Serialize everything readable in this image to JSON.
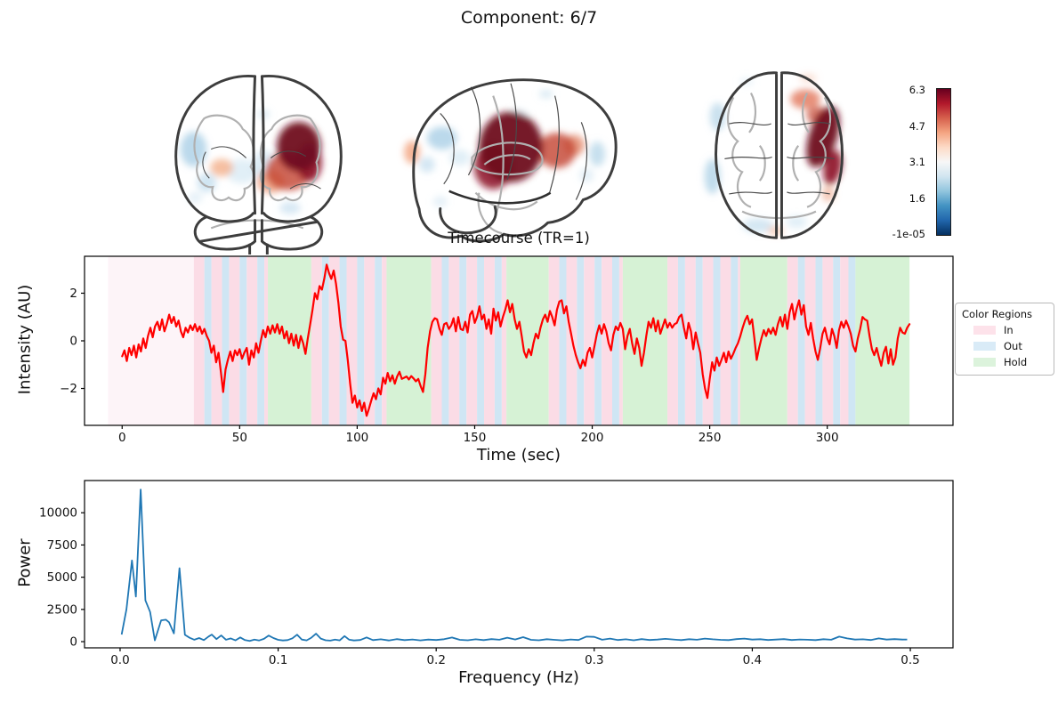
{
  "title": "Component: 6/7",
  "colorbar": {
    "labels": [
      "6.3",
      "4.7",
      "3.1",
      "1.6",
      "-1e-05"
    ],
    "gradient_top_to_bottom": [
      "#67001f",
      "#b2182b",
      "#d6604d",
      "#f4a582",
      "#fddbc7",
      "#f7f7f7",
      "#d1e5f0",
      "#92c5de",
      "#4393c3",
      "#2166ac",
      "#053061"
    ]
  },
  "legend": {
    "title": "Color Regions",
    "items": [
      {
        "label": "In",
        "color": "#fde2ea"
      },
      {
        "label": "Out",
        "color": "#d9ebf7"
      },
      {
        "label": "Hold",
        "color": "#dcf3dc"
      }
    ]
  },
  "brain_views": [
    {
      "name": "coronal"
    },
    {
      "name": "sagittal"
    },
    {
      "name": "axial"
    }
  ],
  "chart_data": [
    {
      "type": "line",
      "title": "Timecourse (TR=1)",
      "xlabel": "Time (sec)",
      "ylabel": "Intensity (AU)",
      "xlim": [
        -16,
        353.5
      ],
      "ylim": [
        -3.55,
        3.55
      ],
      "xticks": [
        0,
        50,
        100,
        150,
        200,
        250,
        300
      ],
      "yticks": [
        -2,
        0,
        2
      ],
      "line_color": "#ff0000",
      "t_start": 0,
      "dt": 1,
      "values": [
        -0.65,
        -0.4,
        -0.85,
        -0.3,
        -0.6,
        -0.2,
        -0.7,
        -0.15,
        -0.45,
        0.1,
        -0.3,
        0.2,
        0.55,
        0.15,
        0.6,
        0.8,
        0.45,
        0.9,
        0.4,
        0.7,
        1.1,
        0.75,
        1.0,
        0.6,
        0.85,
        0.4,
        0.15,
        0.55,
        0.35,
        0.65,
        0.45,
        0.7,
        0.4,
        0.6,
        0.3,
        0.5,
        0.2,
        0.0,
        -0.5,
        -0.2,
        -0.9,
        -0.5,
        -1.3,
        -2.15,
        -1.2,
        -0.8,
        -0.45,
        -0.85,
        -0.4,
        -0.6,
        -0.35,
        -0.75,
        -0.5,
        -0.3,
        -1.0,
        -0.4,
        -0.7,
        -0.1,
        -0.5,
        0.0,
        0.45,
        0.15,
        0.6,
        0.3,
        0.65,
        0.35,
        0.7,
        0.3,
        0.6,
        0.1,
        0.4,
        -0.1,
        0.3,
        -0.2,
        0.25,
        -0.3,
        0.2,
        -0.1,
        -0.55,
        0.1,
        0.7,
        1.3,
        2.0,
        1.75,
        2.3,
        2.15,
        2.6,
        3.2,
        2.85,
        2.6,
        2.95,
        2.4,
        1.6,
        0.6,
        0.05,
        0.0,
        -0.8,
        -1.8,
        -2.6,
        -2.3,
        -2.8,
        -2.5,
        -2.95,
        -2.6,
        -3.15,
        -2.85,
        -2.5,
        -2.2,
        -2.45,
        -2.0,
        -2.25,
        -1.55,
        -1.8,
        -1.35,
        -1.7,
        -1.45,
        -1.8,
        -1.5,
        -1.3,
        -1.6,
        -1.55,
        -1.5,
        -1.62,
        -1.48,
        -1.58,
        -1.7,
        -1.6,
        -1.9,
        -2.15,
        -1.4,
        -0.3,
        0.4,
        0.8,
        0.95,
        0.9,
        0.5,
        0.25,
        0.7,
        0.75,
        0.5,
        0.65,
        0.95,
        0.4,
        1.0,
        0.5,
        0.45,
        0.8,
        0.35,
        1.1,
        1.25,
        0.75,
        1.0,
        1.45,
        0.9,
        1.1,
        0.5,
        0.9,
        0.3,
        1.35,
        0.85,
        1.2,
        0.6,
        1.0,
        1.3,
        1.7,
        1.2,
        1.55,
        0.9,
        0.5,
        0.8,
        0.2,
        -0.45,
        -0.7,
        -0.35,
        -0.6,
        -0.1,
        0.3,
        0.1,
        0.55,
        0.9,
        1.1,
        0.8,
        1.25,
        1.0,
        0.65,
        1.3,
        1.65,
        1.7,
        1.15,
        1.45,
        0.8,
        0.3,
        -0.2,
        -0.6,
        -0.9,
        -1.15,
        -0.8,
        -1.05,
        -0.5,
        -0.3,
        -0.7,
        -0.2,
        0.3,
        0.65,
        0.3,
        0.7,
        0.4,
        -0.1,
        -0.4,
        0.25,
        0.6,
        0.45,
        0.75,
        0.5,
        -0.35,
        0.2,
        0.5,
        -0.1,
        -0.55,
        0.1,
        -0.3,
        -1.05,
        -0.5,
        0.2,
        0.8,
        0.55,
        0.95,
        0.4,
        0.85,
        0.3,
        0.6,
        0.9,
        0.55,
        0.75,
        0.55,
        0.7,
        0.75,
        1.0,
        1.1,
        0.55,
        0.1,
        0.75,
        0.4,
        -0.35,
        0.35,
        -0.1,
        -0.5,
        -1.4,
        -2.0,
        -2.4,
        -1.6,
        -0.9,
        -1.25,
        -0.7,
        -1.05,
        -0.8,
        -0.5,
        -0.9,
        -0.45,
        -0.75,
        -0.55,
        -0.3,
        -0.1,
        0.2,
        0.55,
        0.85,
        1.05,
        0.7,
        0.9,
        0.1,
        -0.8,
        -0.3,
        0.1,
        0.45,
        0.2,
        0.5,
        0.3,
        0.55,
        0.25,
        0.7,
        1.0,
        0.6,
        1.1,
        0.5,
        1.2,
        1.55,
        0.9,
        1.35,
        1.7,
        1.1,
        1.5,
        0.6,
        0.25,
        0.75,
        0.1,
        -0.45,
        -0.8,
        -0.3,
        0.3,
        0.55,
        0.1,
        -0.15,
        0.5,
        0.2,
        -0.3,
        0.45,
        0.8,
        0.55,
        0.85,
        0.6,
        0.3,
        -0.2,
        -0.45,
        0.1,
        0.5,
        1.0,
        0.9,
        0.85,
        0.2,
        -0.35,
        -0.6,
        -0.3,
        -0.7,
        -1.05,
        -0.5,
        -0.25,
        -0.95,
        -0.35,
        -1.0,
        -0.7,
        0.1,
        0.55,
        0.35,
        0.3,
        0.55,
        0.7
      ],
      "region_colors": {
        "rest": "#fdf4f8",
        "in": "#fbdce6",
        "out": "#cfe6f4",
        "hold": "#d6f2d5"
      },
      "regions": [
        [
          -6,
          30.5,
          "rest"
        ],
        [
          30.5,
          35,
          "in"
        ],
        [
          35,
          38,
          "out"
        ],
        [
          38,
          42.5,
          "in"
        ],
        [
          42.5,
          45.5,
          "out"
        ],
        [
          45.5,
          50,
          "in"
        ],
        [
          50,
          53,
          "out"
        ],
        [
          53,
          57.5,
          "in"
        ],
        [
          57.5,
          60.5,
          "out"
        ],
        [
          60.5,
          62,
          "in"
        ],
        [
          62,
          80.5,
          "hold"
        ],
        [
          80.5,
          85,
          "in"
        ],
        [
          85,
          88,
          "out"
        ],
        [
          88,
          92.5,
          "in"
        ],
        [
          92.5,
          95.5,
          "out"
        ],
        [
          95.5,
          100,
          "in"
        ],
        [
          100,
          103,
          "out"
        ],
        [
          103,
          107.5,
          "in"
        ],
        [
          107.5,
          110.5,
          "out"
        ],
        [
          110.5,
          112.5,
          "in"
        ],
        [
          112.5,
          131.5,
          "hold"
        ],
        [
          131.5,
          136,
          "in"
        ],
        [
          136,
          139,
          "out"
        ],
        [
          139,
          143.5,
          "in"
        ],
        [
          143.5,
          146.5,
          "out"
        ],
        [
          146.5,
          151,
          "in"
        ],
        [
          151,
          154,
          "out"
        ],
        [
          154,
          158.5,
          "in"
        ],
        [
          158.5,
          161.5,
          "out"
        ],
        [
          161.5,
          163.5,
          "in"
        ],
        [
          163.5,
          181.5,
          "hold"
        ],
        [
          181.5,
          186,
          "in"
        ],
        [
          186,
          189,
          "out"
        ],
        [
          189,
          193.5,
          "in"
        ],
        [
          193.5,
          196.5,
          "out"
        ],
        [
          196.5,
          201,
          "in"
        ],
        [
          201,
          204,
          "out"
        ],
        [
          204,
          208.5,
          "in"
        ],
        [
          208.5,
          211.5,
          "out"
        ],
        [
          211.5,
          213,
          "in"
        ],
        [
          213,
          232,
          "hold"
        ],
        [
          232,
          236.5,
          "in"
        ],
        [
          236.5,
          239.5,
          "out"
        ],
        [
          239.5,
          244,
          "in"
        ],
        [
          244,
          247,
          "out"
        ],
        [
          247,
          251.5,
          "in"
        ],
        [
          251.5,
          254.5,
          "out"
        ],
        [
          254.5,
          259,
          "in"
        ],
        [
          259,
          262,
          "out"
        ],
        [
          262,
          263,
          "in"
        ],
        [
          263,
          283,
          "hold"
        ],
        [
          283,
          287.5,
          "in"
        ],
        [
          287.5,
          290.5,
          "out"
        ],
        [
          290.5,
          295,
          "in"
        ],
        [
          295,
          298,
          "out"
        ],
        [
          298,
          302.5,
          "in"
        ],
        [
          302.5,
          305.5,
          "out"
        ],
        [
          305.5,
          309,
          "in"
        ],
        [
          309,
          312,
          "out"
        ],
        [
          312,
          335,
          "hold"
        ]
      ]
    },
    {
      "type": "line",
      "title": "",
      "xlabel": "Frequency (Hz)",
      "ylabel": "Power",
      "xlim": [
        -0.0225,
        0.527
      ],
      "ylim": [
        -480,
        12500
      ],
      "xticks": [
        0.0,
        0.1,
        0.2,
        0.3,
        0.4,
        0.5
      ],
      "yticks": [
        0,
        2500,
        5000,
        7500,
        10000
      ],
      "line_color": "#1f77b4",
      "points": [
        [
          0.001,
          550
        ],
        [
          0.004,
          2500
        ],
        [
          0.0075,
          6300
        ],
        [
          0.01,
          3500
        ],
        [
          0.013,
          11800
        ],
        [
          0.016,
          3200
        ],
        [
          0.019,
          2300
        ],
        [
          0.022,
          100
        ],
        [
          0.026,
          1650
        ],
        [
          0.029,
          1700
        ],
        [
          0.031,
          1500
        ],
        [
          0.034,
          640
        ],
        [
          0.0376,
          5700
        ],
        [
          0.041,
          530
        ],
        [
          0.044,
          300
        ],
        [
          0.047,
          150
        ],
        [
          0.05,
          280
        ],
        [
          0.053,
          120
        ],
        [
          0.056,
          400
        ],
        [
          0.058,
          550
        ],
        [
          0.061,
          200
        ],
        [
          0.064,
          480
        ],
        [
          0.067,
          150
        ],
        [
          0.07,
          250
        ],
        [
          0.073,
          100
        ],
        [
          0.076,
          330
        ],
        [
          0.079,
          120
        ],
        [
          0.082,
          60
        ],
        [
          0.085,
          160
        ],
        [
          0.088,
          90
        ],
        [
          0.091,
          220
        ],
        [
          0.094,
          470
        ],
        [
          0.097,
          280
        ],
        [
          0.1,
          140
        ],
        [
          0.103,
          90
        ],
        [
          0.106,
          120
        ],
        [
          0.109,
          260
        ],
        [
          0.112,
          540
        ],
        [
          0.115,
          160
        ],
        [
          0.118,
          100
        ],
        [
          0.121,
          310
        ],
        [
          0.124,
          620
        ],
        [
          0.127,
          240
        ],
        [
          0.13,
          110
        ],
        [
          0.133,
          80
        ],
        [
          0.136,
          160
        ],
        [
          0.139,
          100
        ],
        [
          0.142,
          430
        ],
        [
          0.145,
          150
        ],
        [
          0.148,
          90
        ],
        [
          0.152,
          130
        ],
        [
          0.156,
          330
        ],
        [
          0.16,
          120
        ],
        [
          0.165,
          180
        ],
        [
          0.17,
          90
        ],
        [
          0.175,
          200
        ],
        [
          0.18,
          120
        ],
        [
          0.185,
          170
        ],
        [
          0.19,
          100
        ],
        [
          0.195,
          160
        ],
        [
          0.2,
          130
        ],
        [
          0.205,
          190
        ],
        [
          0.21,
          320
        ],
        [
          0.215,
          140
        ],
        [
          0.22,
          110
        ],
        [
          0.225,
          180
        ],
        [
          0.23,
          120
        ],
        [
          0.235,
          200
        ],
        [
          0.24,
          150
        ],
        [
          0.245,
          310
        ],
        [
          0.25,
          170
        ],
        [
          0.255,
          350
        ],
        [
          0.26,
          140
        ],
        [
          0.265,
          110
        ],
        [
          0.27,
          190
        ],
        [
          0.275,
          140
        ],
        [
          0.28,
          100
        ],
        [
          0.285,
          170
        ],
        [
          0.29,
          130
        ],
        [
          0.295,
          390
        ],
        [
          0.3,
          370
        ],
        [
          0.305,
          150
        ],
        [
          0.31,
          240
        ],
        [
          0.315,
          130
        ],
        [
          0.32,
          180
        ],
        [
          0.325,
          110
        ],
        [
          0.33,
          200
        ],
        [
          0.335,
          130
        ],
        [
          0.34,
          160
        ],
        [
          0.345,
          220
        ],
        [
          0.35,
          170
        ],
        [
          0.355,
          120
        ],
        [
          0.36,
          190
        ],
        [
          0.365,
          150
        ],
        [
          0.37,
          240
        ],
        [
          0.375,
          180
        ],
        [
          0.38,
          140
        ],
        [
          0.385,
          120
        ],
        [
          0.39,
          200
        ],
        [
          0.395,
          240
        ],
        [
          0.4,
          160
        ],
        [
          0.405,
          190
        ],
        [
          0.41,
          130
        ],
        [
          0.415,
          160
        ],
        [
          0.42,
          200
        ],
        [
          0.425,
          130
        ],
        [
          0.43,
          170
        ],
        [
          0.435,
          150
        ],
        [
          0.44,
          120
        ],
        [
          0.445,
          190
        ],
        [
          0.45,
          150
        ],
        [
          0.455,
          390
        ],
        [
          0.46,
          250
        ],
        [
          0.465,
          160
        ],
        [
          0.47,
          180
        ],
        [
          0.475,
          130
        ],
        [
          0.48,
          250
        ],
        [
          0.485,
          160
        ],
        [
          0.49,
          200
        ],
        [
          0.495,
          160
        ],
        [
          0.498,
          170
        ]
      ]
    }
  ]
}
